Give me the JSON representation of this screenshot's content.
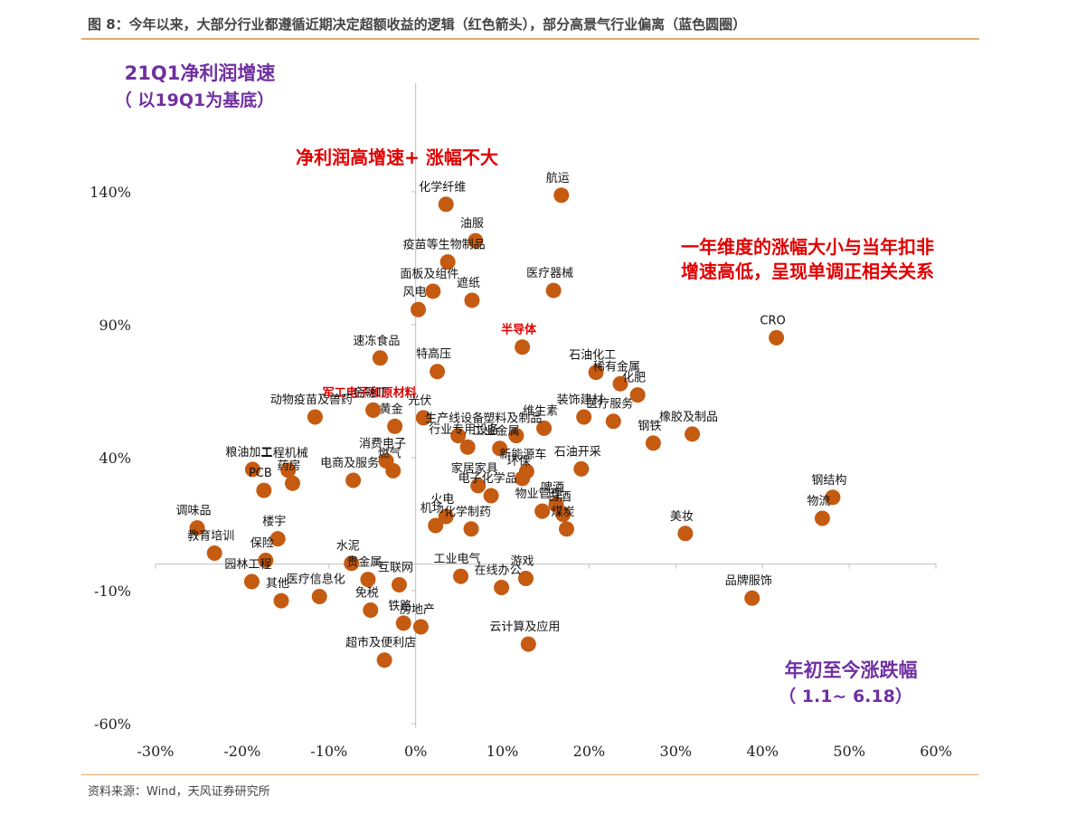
{
  "caption": "图 8：今年以来，大部分行业都遵循近期决定超额收益的逻辑（红色箭头），部分高景气行业偏离（蓝色圆圈）",
  "source": "资料来源：Wind，天风证券研究所",
  "chart_data": {
    "type": "scatter",
    "ylabel_line1": "21Q1净利润增速",
    "ylabel_line2": "（ 以19Q1为基底）",
    "xlabel_line1": "年初至今涨跌幅",
    "xlabel_line2": "（ 1.1~ 6.18）",
    "annotations": [
      "净利润高增速+ 涨幅不大",
      "一年维度的涨幅大小与当年扣非",
      "增速高低，呈现单调正相关关系"
    ],
    "xlim": [
      -30,
      60
    ],
    "ylim": [
      -60,
      140
    ],
    "x_ticks": [
      -30,
      -20,
      -10,
      0,
      10,
      20,
      30,
      40,
      50,
      60
    ],
    "x_tick_labels": [
      "-30%",
      "-20%",
      "-10%",
      "0%",
      "10%",
      "20%",
      "30%",
      "40%",
      "50%",
      "60%"
    ],
    "y_ticks": [
      -60,
      -10,
      40,
      90,
      140
    ],
    "y_tick_labels": [
      "-60%",
      "-10%",
      "40%",
      "90%",
      "140%"
    ],
    "marker_color": "#c55a11",
    "highlight_color": "#e00000",
    "points": [
      {
        "label": "航运",
        "x": 16.8,
        "y": 138.7
      },
      {
        "label": "化学纤维",
        "x": 3.5,
        "y": 135.3
      },
      {
        "label": "油服",
        "x": 6.9,
        "y": 121.6
      },
      {
        "label": "疫苗等生物制品",
        "x": 3.7,
        "y": 113.6
      },
      {
        "label": "面板及组件",
        "x": 2.0,
        "y": 102.6
      },
      {
        "label": "医疗器械",
        "x": 15.9,
        "y": 102.9
      },
      {
        "label": "遮纸",
        "x": 6.5,
        "y": 99.2
      },
      {
        "label": "风电",
        "x": 0.3,
        "y": 95.7
      },
      {
        "label": "CRO",
        "x": 41.6,
        "y": 85.1
      },
      {
        "label": "半导体",
        "x": 12.3,
        "y": 81.6,
        "highlight": true
      },
      {
        "label": "速冻食品",
        "x": -4.1,
        "y": 77.5
      },
      {
        "label": "特高压",
        "x": 2.5,
        "y": 72.4
      },
      {
        "label": "石油化工",
        "x": 20.8,
        "y": 72.1
      },
      {
        "label": "稀有金属",
        "x": 23.6,
        "y": 67.8
      },
      {
        "label": "化肥",
        "x": 25.6,
        "y": 63.6
      },
      {
        "label": "军工电子和原材料",
        "x": -4.9,
        "y": 57.9,
        "highlight": true
      },
      {
        "label": "金融IT",
        "x": -4.9,
        "y": 57.9
      },
      {
        "label": "光伏",
        "x": 0.9,
        "y": 55.0
      },
      {
        "label": "动物疫苗及兽药",
        "x": -11.6,
        "y": 55.3
      },
      {
        "label": "装饰建材",
        "x": 19.4,
        "y": 55.3
      },
      {
        "label": "医疗服务",
        "x": 22.8,
        "y": 53.7
      },
      {
        "label": "维生素",
        "x": 14.8,
        "y": 51.1
      },
      {
        "label": "黄金",
        "x": -2.4,
        "y": 51.8
      },
      {
        "label": "生产线设备",
        "x": 4.9,
        "y": 48.3
      },
      {
        "label": "塑料及制品",
        "x": 11.6,
        "y": 48.3
      },
      {
        "label": "橡胶及制品",
        "x": 31.9,
        "y": 48.9
      },
      {
        "label": "钢铁",
        "x": 27.4,
        "y": 45.5
      },
      {
        "label": "行业专用设备",
        "x": 6.0,
        "y": 44.0
      },
      {
        "label": "工业金属",
        "x": 9.7,
        "y": 43.5
      },
      {
        "label": "粮油加工",
        "x": -18.8,
        "y": 35.6
      },
      {
        "label": "工程机械",
        "x": -14.7,
        "y": 35.3
      },
      {
        "label": "消费电子",
        "x": -3.4,
        "y": 38.8
      },
      {
        "label": "电商及服务",
        "x": -7.2,
        "y": 31.5
      },
      {
        "label": "新能源车",
        "x": 12.8,
        "y": 34.8
      },
      {
        "label": "石油开采",
        "x": 19.1,
        "y": 35.8
      },
      {
        "label": "钢结构",
        "x": 48.1,
        "y": 25.1
      },
      {
        "label": "物流",
        "x": 46.9,
        "y": 17.2
      },
      {
        "label": "燃气",
        "x": -2.6,
        "y": 35.1
      },
      {
        "label": "药房",
        "x": -14.2,
        "y": 30.4
      },
      {
        "label": "PCB",
        "x": -17.5,
        "y": 27.7
      },
      {
        "label": "电子化学品",
        "x": 8.7,
        "y": 25.7
      },
      {
        "label": "家居家具",
        "x": 7.2,
        "y": 29.5
      },
      {
        "label": "环保",
        "x": 12.3,
        "y": 32.2
      },
      {
        "label": "物业管理",
        "x": 14.6,
        "y": 19.9
      },
      {
        "label": "啤酒",
        "x": 16.2,
        "y": 22.3
      },
      {
        "label": "白酒",
        "x": 17.0,
        "y": 18.7
      },
      {
        "label": "煤炭",
        "x": 17.4,
        "y": 13.2
      },
      {
        "label": "美妆",
        "x": 31.1,
        "y": 11.5
      },
      {
        "label": "调味品",
        "x": -25.2,
        "y": 13.6
      },
      {
        "label": "教育培训",
        "x": -23.2,
        "y": 4.1
      },
      {
        "label": "品牌服饰",
        "x": 38.8,
        "y": -12.8
      },
      {
        "label": "化学制药",
        "x": 6.4,
        "y": 13.2
      },
      {
        "label": "机场",
        "x": 2.3,
        "y": 14.5
      },
      {
        "label": "火电",
        "x": 3.5,
        "y": 17.9
      },
      {
        "label": "保险",
        "x": -17.3,
        "y": 1.4
      },
      {
        "label": "楼宇",
        "x": -15.9,
        "y": 9.5
      },
      {
        "label": "水泥",
        "x": -7.4,
        "y": 0.3
      },
      {
        "label": "园林工程",
        "x": -18.9,
        "y": -6.6
      },
      {
        "label": "医疗信息化",
        "x": -11.1,
        "y": -12.2
      },
      {
        "label": "贵金属",
        "x": -5.5,
        "y": -5.8
      },
      {
        "label": "免税",
        "x": -5.2,
        "y": -17.3
      },
      {
        "label": "互联网",
        "x": -1.9,
        "y": -7.8
      },
      {
        "label": "铁路",
        "x": -1.4,
        "y": -22.2
      },
      {
        "label": "房地产",
        "x": 0.6,
        "y": -23.6
      },
      {
        "label": "超市及便利店",
        "x": -3.6,
        "y": -36.1
      },
      {
        "label": "云计算及应用",
        "x": 13.0,
        "y": -30.1
      },
      {
        "label": "在线办公",
        "x": 9.9,
        "y": -8.8
      },
      {
        "label": "工业电气",
        "x": 5.2,
        "y": -4.6
      },
      {
        "label": "游戏",
        "x": 12.7,
        "y": -5.4
      },
      {
        "label": "其他",
        "x": -15.5,
        "y": -13.8
      }
    ]
  }
}
